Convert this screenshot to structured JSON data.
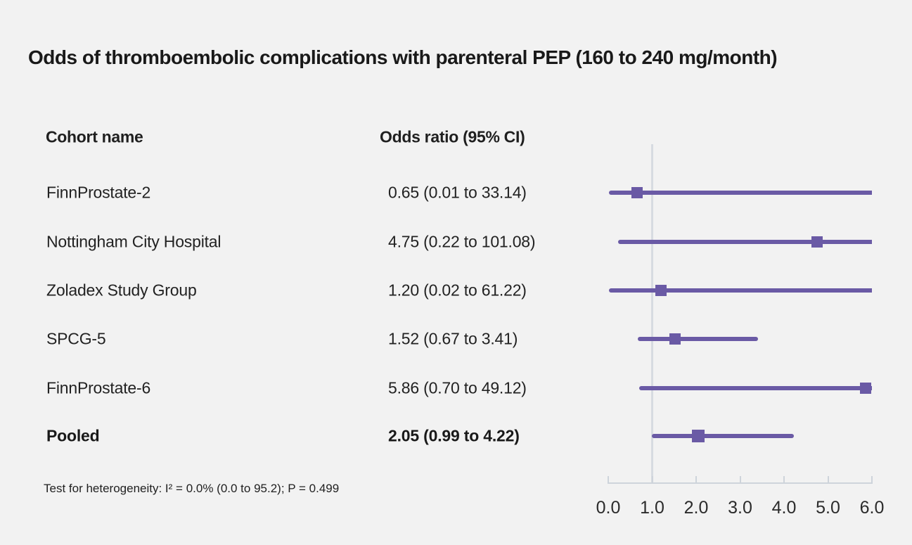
{
  "title": "Odds of thromboembolic complications with parenteral PEP (160 to 240 mg/month)",
  "columns": {
    "cohort": "Cohort name",
    "odds": "Odds ratio (95% CI)"
  },
  "footnote": "Test for heterogeneity: I² = 0.0% (0.0 to 95.2); P = 0.499",
  "colors": {
    "background": "#f2f2f2",
    "text": "#1f1f1f",
    "marker": "#6a5aa5",
    "ci_line": "#6a5aa5",
    "reference_line": "#d7dbe1",
    "axis": "#ced4db"
  },
  "chart_data": {
    "type": "forest",
    "title": "Odds of thromboembolic complications with parenteral PEP (160 to 240 mg/month)",
    "xlabel": "Odds ratio",
    "xlim": [
      0.0,
      6.0
    ],
    "x_ticks": [
      0.0,
      1.0,
      2.0,
      3.0,
      4.0,
      5.0,
      6.0
    ],
    "x_tick_labels": [
      "0.0",
      "1.0",
      "2.0",
      "3.0",
      "4.0",
      "5.0",
      "6.0"
    ],
    "reference_line_x": 1.0,
    "grid": false,
    "legend": false,
    "rows": [
      {
        "cohort": "FinnProstate-2",
        "value_label": "0.65 (0.01 to 33.14)",
        "or": 0.65,
        "ci_low": 0.01,
        "ci_high": 33.14,
        "pooled": false
      },
      {
        "cohort": "Nottingham City Hospital",
        "value_label": "4.75 (0.22 to 101.08)",
        "or": 4.75,
        "ci_low": 0.22,
        "ci_high": 101.08,
        "pooled": false
      },
      {
        "cohort": "Zoladex Study Group",
        "value_label": "1.20 (0.02 to 61.22)",
        "or": 1.2,
        "ci_low": 0.02,
        "ci_high": 61.22,
        "pooled": false
      },
      {
        "cohort": "SPCG-5",
        "value_label": "1.52 (0.67 to 3.41)",
        "or": 1.52,
        "ci_low": 0.67,
        "ci_high": 3.41,
        "pooled": false
      },
      {
        "cohort": "FinnProstate-6",
        "value_label": "5.86 (0.70 to 49.12)",
        "or": 5.86,
        "ci_low": 0.7,
        "ci_high": 49.12,
        "pooled": false
      },
      {
        "cohort": "Pooled",
        "value_label": "2.05 (0.99 to 4.22)",
        "or": 2.05,
        "ci_low": 0.99,
        "ci_high": 4.22,
        "pooled": true
      }
    ]
  }
}
